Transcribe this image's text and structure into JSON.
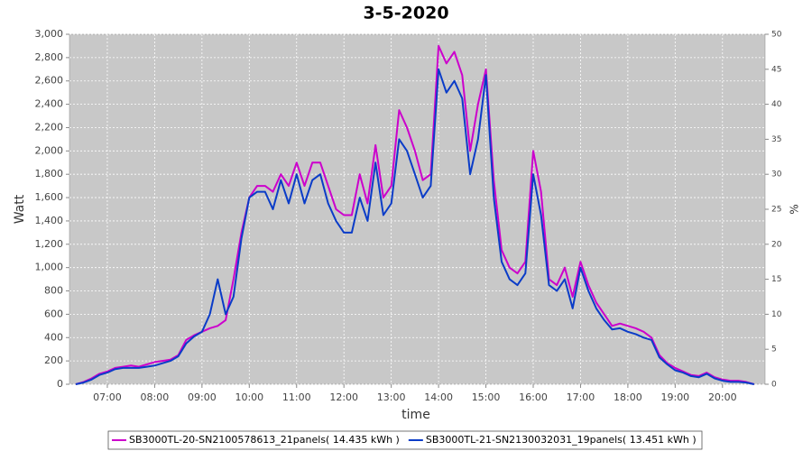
{
  "chart_data": {
    "type": "line",
    "title": "3-5-2020",
    "x_label": "time",
    "y_label": "Watt",
    "y2_label": "%",
    "x": [
      "06:20",
      "06:30",
      "06:40",
      "06:50",
      "07:00",
      "07:10",
      "07:20",
      "07:30",
      "07:40",
      "07:50",
      "08:00",
      "08:10",
      "08:20",
      "08:30",
      "08:40",
      "08:50",
      "09:00",
      "09:10",
      "09:20",
      "09:30",
      "09:40",
      "09:50",
      "10:00",
      "10:10",
      "10:20",
      "10:30",
      "10:40",
      "10:50",
      "11:00",
      "11:10",
      "11:20",
      "11:30",
      "11:40",
      "11:50",
      "12:00",
      "12:10",
      "12:20",
      "12:30",
      "12:40",
      "12:50",
      "13:00",
      "13:10",
      "13:20",
      "13:30",
      "13:40",
      "13:50",
      "14:00",
      "14:10",
      "14:20",
      "14:30",
      "14:40",
      "14:50",
      "15:00",
      "15:10",
      "15:20",
      "15:30",
      "15:40",
      "15:50",
      "16:00",
      "16:10",
      "16:20",
      "16:30",
      "16:40",
      "16:50",
      "17:00",
      "17:10",
      "17:20",
      "17:30",
      "17:40",
      "17:50",
      "18:00",
      "18:10",
      "18:20",
      "18:30",
      "18:40",
      "18:50",
      "19:00",
      "19:10",
      "19:20",
      "19:30",
      "19:40",
      "19:50",
      "20:00",
      "20:10",
      "20:20",
      "20:30",
      "20:40"
    ],
    "series": [
      {
        "name": "SB3000TL-20-SN2100578613_21panels( 14.435 kWh )",
        "color": "#cc00cc",
        "values": [
          0,
          20,
          50,
          90,
          110,
          140,
          150,
          160,
          150,
          170,
          190,
          200,
          210,
          250,
          380,
          420,
          450,
          480,
          500,
          550,
          900,
          1300,
          1600,
          1700,
          1700,
          1650,
          1800,
          1700,
          1900,
          1700,
          1900,
          1900,
          1700,
          1500,
          1450,
          1450,
          1800,
          1550,
          2050,
          1600,
          1700,
          2350,
          2200,
          2000,
          1750,
          1800,
          2900,
          2750,
          2850,
          2650,
          2000,
          2400,
          2700,
          1750,
          1150,
          1000,
          950,
          1050,
          2000,
          1650,
          900,
          850,
          1000,
          750,
          1050,
          850,
          700,
          600,
          500,
          520,
          500,
          480,
          450,
          400,
          250,
          180,
          140,
          110,
          80,
          70,
          100,
          60,
          40,
          30,
          30,
          20,
          0
        ]
      },
      {
        "name": "SB3000TL-21-SN2130032031_19panels( 13.451 kWh )",
        "color": "#0a3cc8",
        "values": [
          0,
          15,
          40,
          80,
          100,
          130,
          140,
          140,
          140,
          150,
          160,
          180,
          200,
          240,
          350,
          410,
          450,
          600,
          900,
          600,
          750,
          1250,
          1600,
          1650,
          1650,
          1500,
          1750,
          1550,
          1800,
          1550,
          1750,
          1800,
          1550,
          1400,
          1300,
          1300,
          1600,
          1400,
          1900,
          1450,
          1550,
          2100,
          2000,
          1800,
          1600,
          1700,
          2700,
          2500,
          2600,
          2450,
          1800,
          2100,
          2650,
          1600,
          1050,
          900,
          850,
          950,
          1800,
          1450,
          850,
          800,
          900,
          650,
          1000,
          800,
          650,
          550,
          470,
          480,
          450,
          430,
          400,
          380,
          230,
          170,
          120,
          100,
          70,
          60,
          90,
          50,
          30,
          20,
          20,
          15,
          0
        ]
      }
    ],
    "xlim": [
      "06:12",
      "20:54"
    ],
    "xticks": [
      "07:00",
      "08:00",
      "09:00",
      "10:00",
      "11:00",
      "12:00",
      "13:00",
      "14:00",
      "15:00",
      "16:00",
      "17:00",
      "18:00",
      "19:00",
      "20:00"
    ],
    "ylim": [
      0,
      3000
    ],
    "yticks": [
      0,
      200,
      400,
      600,
      800,
      {
        "value": 1000,
        "label": "1,000"
      },
      {
        "value": 1200,
        "label": "1,200"
      },
      {
        "value": 1400,
        "label": "1,400"
      },
      {
        "value": 1600,
        "label": "1,600"
      },
      {
        "value": 1800,
        "label": "1,800"
      },
      {
        "value": 2000,
        "label": "2,000"
      },
      {
        "value": 2200,
        "label": "2,200"
      },
      {
        "value": 2400,
        "label": "2,400"
      },
      {
        "value": 2600,
        "label": "2,600"
      },
      {
        "value": 2800,
        "label": "2,800"
      },
      {
        "value": 3000,
        "label": "3,000"
      }
    ],
    "y2lim": [
      0,
      50
    ],
    "y2ticks": [
      0,
      5,
      10,
      15,
      20,
      25,
      30,
      35,
      40,
      45,
      50
    ],
    "grid": true
  }
}
